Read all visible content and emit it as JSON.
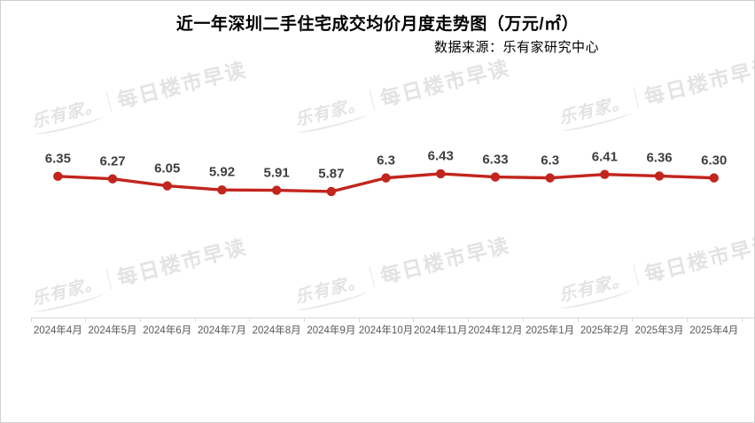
{
  "header": {
    "title": "近一年深圳二手住宅成交均价月度走势图（万元/㎡）",
    "source": "数据来源：乐有家研究中心"
  },
  "watermark": {
    "logo": "乐有家。",
    "text": "每日楼市早读",
    "color": "#e3e3e3"
  },
  "chart_data": {
    "type": "line",
    "title": "近一年深圳二手住宅成交均价月度走势图（万元/㎡）",
    "source_note": "数据来源：乐有家研究中心",
    "categories": [
      "2024年4月",
      "2024年5月",
      "2024年6月",
      "2024年7月",
      "2024年8月",
      "2024年9月",
      "2024年10月",
      "2024年11月",
      "2024年12月",
      "2025年1月",
      "2025年2月",
      "2025年3月",
      "2025年4月"
    ],
    "values": [
      6.35,
      6.27,
      6.05,
      5.92,
      5.91,
      5.87,
      6.3,
      6.43,
      6.33,
      6.3,
      6.41,
      6.36,
      6.3
    ],
    "value_labels": [
      "6.35",
      "6.27",
      "6.05",
      "5.92",
      "5.91",
      "5.87",
      "6.3",
      "6.43",
      "6.33",
      "6.3",
      "6.41",
      "6.36",
      "6.30"
    ],
    "unit": "万元/㎡",
    "series_color": "#c2251d",
    "data_label_color": "#3f3f3f",
    "axis_color": "#d9d9d9",
    "tick_label_color": "#595959",
    "grid": false,
    "legend": "none",
    "y_axis": "hidden",
    "data_labels_visible": true
  }
}
